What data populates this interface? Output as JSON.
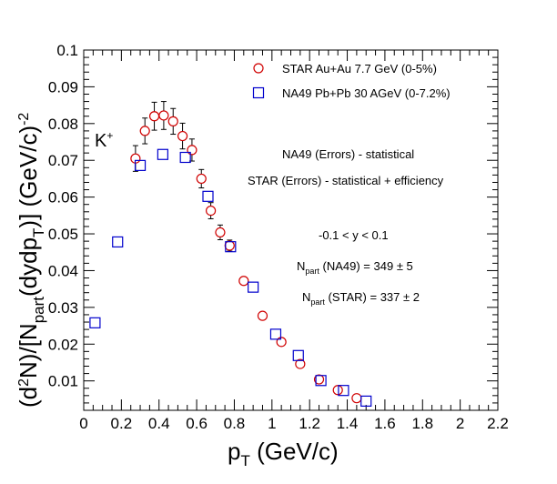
{
  "chart_data": {
    "type": "scatter",
    "title": "",
    "xlabel": {
      "main": "p",
      "sub": "T",
      "rest": " (GeV/c)"
    },
    "ylabel": {
      "p1": "(d",
      "sup1": "2",
      "p2": "N)/[N",
      "sub1": "part",
      "p3": "(dydp",
      "sub2": "T",
      "p4": ")] (GeV/c)",
      "sup2": "-2"
    },
    "xlim": [
      0,
      2.2
    ],
    "ylim": [
      0.002,
      0.1
    ],
    "xticks": [
      "0",
      "0.2",
      "0.4",
      "0.6",
      "0.8",
      "1",
      "1.2",
      "1.4",
      "1.6",
      "1.8",
      "2",
      "2.2"
    ],
    "yticks": [
      "0.01",
      "0.02",
      "0.03",
      "0.04",
      "0.05",
      "0.06",
      "0.07",
      "0.08",
      "0.09",
      "0.1"
    ],
    "grid": false,
    "legend_position": "top-right",
    "series": [
      {
        "name": "STAR Au+Au 7.7 GeV (0-5%)",
        "marker": "open-circle",
        "color": "#d00000",
        "x": [
          0.275,
          0.325,
          0.375,
          0.425,
          0.475,
          0.525,
          0.575,
          0.625,
          0.675,
          0.725,
          0.775,
          0.85,
          0.95,
          1.05,
          1.15,
          1.25,
          1.35,
          1.45
        ],
        "y": [
          0.0705,
          0.078,
          0.082,
          0.0822,
          0.0806,
          0.0766,
          0.0728,
          0.065,
          0.0563,
          0.0504,
          0.0468,
          0.0372,
          0.0277,
          0.0206,
          0.0146,
          0.0104,
          0.0075,
          0.0053
        ],
        "yerr": [
          0.0035,
          0.0035,
          0.0038,
          0.0038,
          0.0035,
          0.0035,
          0.003,
          0.0025,
          0.0022,
          0.002,
          0.0015,
          0.0012,
          0.001,
          0.0008,
          0.0006,
          0.0005,
          0.0004,
          0.0003
        ]
      },
      {
        "name": "NA49 Pb+Pb 30 AGeV (0-7.2%)",
        "marker": "open-square",
        "color": "#0000cc",
        "x": [
          0.06,
          0.18,
          0.3,
          0.42,
          0.54,
          0.66,
          0.78,
          0.9,
          1.02,
          1.14,
          1.26,
          1.38,
          1.5
        ],
        "y": [
          0.0258,
          0.0478,
          0.0686,
          0.0716,
          0.0708,
          0.0602,
          0.0465,
          0.0355,
          0.0227,
          0.0169,
          0.0101,
          0.0074,
          0.0045
        ],
        "yerr": [
          0.0005,
          0.0005,
          0.0008,
          0.0008,
          0.0008,
          0.0008,
          0.0006,
          0.0005,
          0.0004,
          0.0003,
          0.0003,
          0.0003,
          0.0003
        ]
      }
    ],
    "annotations": {
      "particle": {
        "base": "K",
        "sup": "+"
      },
      "errors_na49": "NA49 (Errors) - statistical",
      "errors_star": "STAR (Errors) - statistical + efficiency",
      "rapidity": "-0.1 < y < 0.1",
      "npart_na49": {
        "pre": "N",
        "sub": "part",
        "post": " (NA49) = 349 ± 5"
      },
      "npart_star": {
        "pre": "N",
        "sub": "part",
        "post": " (STAR) = 337 ± 2"
      }
    }
  }
}
